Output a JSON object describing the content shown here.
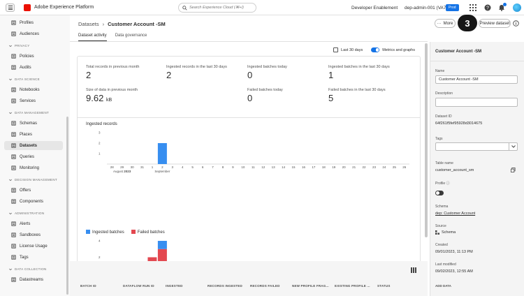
{
  "topbar": {
    "app_name": "Adobe Experience Platform",
    "search_placeholder": "Search Experience Cloud (⌘+/)",
    "org": "Developer Enablement",
    "sandbox": "dep-admin-001 (VA7)",
    "sandbox_badge": "Prod"
  },
  "sidebar": {
    "items_top": [
      {
        "label": "Profiles",
        "icon": "profiles-icon"
      },
      {
        "label": "Audiences",
        "icon": "audiences-icon"
      }
    ],
    "sections": [
      {
        "title": "PRIVACY",
        "items": [
          {
            "label": "Policies",
            "icon": "policies-icon"
          },
          {
            "label": "Audits",
            "icon": "audits-icon"
          }
        ]
      },
      {
        "title": "DATA SCIENCE",
        "items": [
          {
            "label": "Notebooks",
            "icon": "notebooks-icon"
          },
          {
            "label": "Services",
            "icon": "services-icon"
          }
        ]
      },
      {
        "title": "DATA MANAGEMENT",
        "items": [
          {
            "label": "Schemas",
            "icon": "schemas-icon"
          },
          {
            "label": "Places",
            "icon": "places-icon"
          },
          {
            "label": "Datasets",
            "icon": "datasets-icon",
            "active": true
          },
          {
            "label": "Queries",
            "icon": "queries-icon"
          },
          {
            "label": "Monitoring",
            "icon": "monitoring-icon"
          }
        ]
      },
      {
        "title": "DECISION MANAGEMENT",
        "items": [
          {
            "label": "Offers",
            "icon": "offers-icon"
          },
          {
            "label": "Components",
            "icon": "components-icon"
          }
        ]
      },
      {
        "title": "ADMINISTRATION",
        "items": [
          {
            "label": "Alerts",
            "icon": "alerts-icon"
          },
          {
            "label": "Sandboxes",
            "icon": "sandboxes-icon"
          },
          {
            "label": "License Usage",
            "icon": "license-icon"
          },
          {
            "label": "Tags",
            "icon": "tags-icon"
          }
        ]
      },
      {
        "title": "DATA COLLECTION",
        "items": [
          {
            "label": "Datastreams",
            "icon": "datastreams-icon"
          }
        ]
      }
    ]
  },
  "breadcrumb": {
    "parent": "Datasets",
    "current": "Customer Account -SM"
  },
  "tabs": [
    {
      "label": "Dataset activity",
      "active": true
    },
    {
      "label": "Data governance",
      "active": false
    }
  ],
  "range": {
    "label": "Last 30 days",
    "toggle_label": "Metrics and graphs"
  },
  "stats": {
    "total_records_prev_month": {
      "label": "Total records in previous month",
      "value": "2"
    },
    "ingested_records_30": {
      "label": "Ingested records in the last 30 days",
      "value": "2"
    },
    "ingested_batches_today": {
      "label": "Ingested batches today",
      "value": "0"
    },
    "ingested_batches_30": {
      "label": "Ingested batches in the last 30 days",
      "value": "1"
    },
    "data_size_prev_month": {
      "label": "Size of data in previous month",
      "value": "9.62",
      "unit": "kB"
    },
    "failed_batches_today": {
      "label": "Failed batches today",
      "value": "0"
    },
    "failed_batches_30": {
      "label": "Failed batches in the last 30 days",
      "value": "5"
    }
  },
  "chart_data": [
    {
      "type": "bar",
      "title": "Ingested records",
      "categories": [
        "28",
        "29",
        "30",
        "31",
        "1",
        "2",
        "3",
        "4",
        "5",
        "6",
        "7",
        "8",
        "9",
        "10",
        "11",
        "12",
        "13",
        "14",
        "15",
        "16",
        "17",
        "18",
        "19",
        "20",
        "21",
        "22",
        "23",
        "24",
        "25",
        "26"
      ],
      "month_labels": [
        {
          "label": "August",
          "year": "2023",
          "at": "29"
        },
        {
          "label": "September",
          "at": "2"
        }
      ],
      "series": [
        {
          "color": "#378ef0",
          "values": [
            0,
            0,
            0,
            0,
            0,
            2,
            0,
            0,
            0,
            0,
            0,
            0,
            0,
            0,
            0,
            0,
            0,
            0,
            0,
            0,
            0,
            0,
            0,
            0,
            0,
            0,
            0,
            0,
            0,
            0
          ]
        }
      ],
      "yticks": [
        "1",
        "2",
        "3"
      ],
      "ylim": [
        0,
        3
      ]
    },
    {
      "type": "bar",
      "stacked": true,
      "categories": [
        "28",
        "29",
        "30",
        "31",
        "1",
        "2",
        "3",
        "4",
        "5",
        "6",
        "7",
        "8",
        "9",
        "10",
        "11",
        "12",
        "13",
        "14",
        "15",
        "16",
        "17",
        "18",
        "19",
        "20",
        "21",
        "22",
        "23",
        "24",
        "25",
        "26"
      ],
      "month_labels": [
        {
          "label": "August",
          "year": "2023",
          "at": "29"
        },
        {
          "label": "September",
          "at": "2"
        }
      ],
      "series": [
        {
          "name": "Failed batches",
          "color": "#e34850",
          "values": [
            0,
            0,
            0,
            0,
            2,
            3,
            0,
            0,
            0,
            0,
            0,
            0,
            0,
            0,
            0,
            0,
            0,
            0,
            0,
            0,
            0,
            0,
            0,
            0,
            0,
            0,
            0,
            0,
            0,
            0
          ]
        },
        {
          "name": "Ingested batches",
          "color": "#378ef0",
          "values": [
            0,
            0,
            0,
            0,
            0,
            1,
            0,
            0,
            0,
            0,
            0,
            0,
            0,
            0,
            0,
            0,
            0,
            0,
            0,
            0,
            0,
            0,
            0,
            0,
            0,
            0,
            0,
            0,
            0,
            0
          ]
        }
      ],
      "yticks": [
        "2",
        "4"
      ],
      "ylim": [
        0,
        4
      ],
      "legend": [
        "Ingested batches",
        "Failed batches"
      ]
    }
  ],
  "table": {
    "columns": [
      "BATCH ID",
      "DATAFLOW RUN ID",
      "INGESTED",
      "RECORDS INGESTED",
      "RECORDS FAILED",
      "NEW PROFILE FRAG...",
      "EXISTING PROFILE ...",
      "STATUS"
    ]
  },
  "actions": {
    "more": "More",
    "step": "3",
    "preview": "Preview dataset"
  },
  "right_panel": {
    "title": "Customer Account -SM",
    "name_label": "Name",
    "name_value": "Customer Account -SM",
    "description_label": "Description",
    "description_value": "",
    "dataset_id_label": "Dataset ID",
    "dataset_id": "64f261f5fef95928d3014675",
    "tags_label": "Tags",
    "table_name_label": "Table name",
    "table_name": "customer_account_sm",
    "profile_label": "Profile",
    "schema_label": "Schema",
    "schema_value": "dep: Customer Account",
    "source_label": "Source",
    "source_value": "Schema",
    "created_label": "Created",
    "created_value": "09/01/2023, 11:13 PM",
    "modified_label": "Last modified",
    "modified_value": "09/02/2023, 12:55 AM",
    "add_data_label": "ADD DATA"
  }
}
